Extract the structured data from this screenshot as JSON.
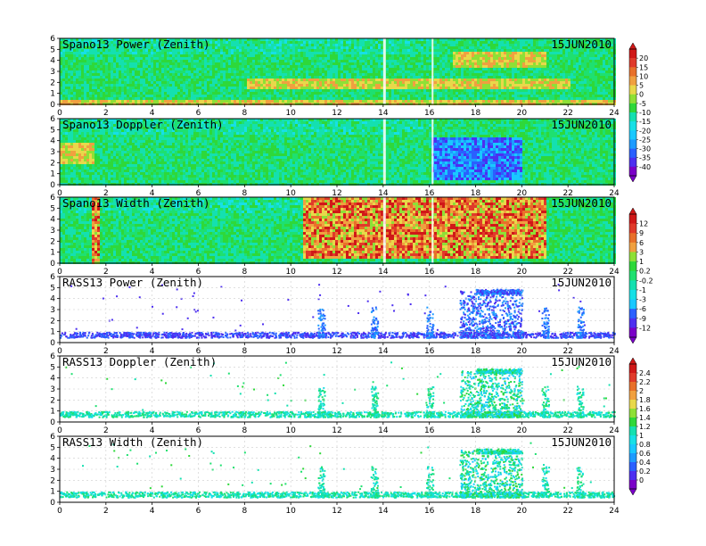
{
  "figure": {
    "date": "15JUN2010",
    "x_ticks": [
      "0",
      "2",
      "4",
      "6",
      "8",
      "10",
      "12",
      "14",
      "16",
      "18",
      "20",
      "22",
      "24"
    ],
    "y_ticks": [
      "0",
      "1",
      "2",
      "3",
      "4",
      "5",
      "6"
    ]
  },
  "colorbars": [
    {
      "panels": [
        0,
        1
      ],
      "ticks": [
        "20",
        "15",
        "10",
        "5",
        "0",
        "-5",
        "-10",
        "-15",
        "-20",
        "-25",
        "-30",
        "-35",
        "-40"
      ]
    },
    {
      "panels": [
        2,
        3
      ],
      "ticks": [
        "12",
        "9",
        "6",
        "3",
        "1",
        "0.2",
        "-0.2",
        "-1",
        "-3",
        "-6",
        "-9",
        "-12"
      ]
    },
    {
      "panels": [
        4,
        5
      ],
      "ticks": [
        "2.4",
        "2.2",
        "2",
        "1.8",
        "1.6",
        "1.4",
        "1.2",
        "1",
        "0.8",
        "0.6",
        "0.4",
        "0.2",
        "0"
      ]
    }
  ],
  "palette": [
    "#7a00c8",
    "#4d2ff0",
    "#2a60ff",
    "#1e9bff",
    "#19c8ff",
    "#16e0e6",
    "#14e0b0",
    "#1ee070",
    "#2ed83a",
    "#8ee036",
    "#e8d84a",
    "#f0a040",
    "#e8702a",
    "#e03a2a",
    "#d01818"
  ],
  "chart_data": [
    {
      "type": "heatmap",
      "title": "Spano13 Power (Zenith)",
      "date": "15JUN2010",
      "xlim": [
        0,
        24
      ],
      "ylim": [
        0,
        6
      ],
      "x_tick_values": [
        0,
        2,
        4,
        6,
        8,
        10,
        12,
        14,
        16,
        18,
        20,
        22,
        24
      ],
      "y_tick_values": [
        0,
        1,
        2,
        3,
        4,
        5,
        6
      ],
      "field": "dense",
      "x_coverage": [
        0,
        24
      ],
      "y_coverage": [
        0,
        6
      ],
      "colorbar_range": [
        -40,
        20
      ],
      "features": [
        {
          "desc": "strong band near ground",
          "x": [
            0,
            24
          ],
          "y": [
            0,
            0.5
          ],
          "level": "high"
        },
        {
          "desc": "enhanced layer",
          "x": [
            8,
            22
          ],
          "y": [
            1.5,
            2.5
          ],
          "level": "high"
        },
        {
          "desc": "enhanced upper layer",
          "x": [
            17,
            21
          ],
          "y": [
            3.5,
            5.0
          ],
          "level": "high"
        }
      ]
    },
    {
      "type": "heatmap",
      "title": "Spano13 Doppler (Zenith)",
      "date": "15JUN2010",
      "xlim": [
        0,
        24
      ],
      "ylim": [
        0,
        6
      ],
      "x_tick_values": [
        0,
        2,
        4,
        6,
        8,
        10,
        12,
        14,
        16,
        18,
        20,
        22,
        24
      ],
      "y_tick_values": [
        0,
        1,
        2,
        3,
        4,
        5,
        6
      ],
      "field": "dense",
      "x_coverage": [
        0,
        24
      ],
      "y_coverage": [
        0,
        6
      ],
      "colorbar_range": [
        -40,
        20
      ],
      "features": [
        {
          "desc": "positive region",
          "x": [
            0,
            1.5
          ],
          "y": [
            2,
            4
          ],
          "level": "high"
        },
        {
          "desc": "negative region",
          "x": [
            16,
            20
          ],
          "y": [
            0.5,
            4.5
          ],
          "level": "low"
        }
      ]
    },
    {
      "type": "heatmap",
      "title": "Spano13 Width (Zenith)",
      "date": "15JUN2010",
      "xlim": [
        0,
        24
      ],
      "ylim": [
        0,
        6
      ],
      "x_tick_values": [
        0,
        2,
        4,
        6,
        8,
        10,
        12,
        14,
        16,
        18,
        20,
        22,
        24
      ],
      "y_tick_values": [
        0,
        1,
        2,
        3,
        4,
        5,
        6
      ],
      "field": "dense",
      "x_coverage": [
        0,
        24
      ],
      "y_coverage": [
        0,
        6
      ],
      "colorbar_range": [
        -12,
        12
      ],
      "features": [
        {
          "desc": "high width convective region",
          "x": [
            10.5,
            21
          ],
          "y": [
            0.5,
            6
          ],
          "level": "high"
        },
        {
          "desc": "high width column",
          "x": [
            1.3,
            1.7
          ],
          "y": [
            0,
            6
          ],
          "level": "high"
        }
      ]
    },
    {
      "type": "heatmap",
      "title": "RASS13 Power (Zenith)",
      "date": "15JUN2010",
      "xlim": [
        0,
        24
      ],
      "ylim": [
        0,
        6
      ],
      "x_tick_values": [
        0,
        2,
        4,
        6,
        8,
        10,
        12,
        14,
        16,
        18,
        20,
        22,
        24
      ],
      "y_tick_values": [
        0,
        1,
        2,
        3,
        4,
        5,
        6
      ],
      "field": "sparse",
      "x_coverage": [
        0,
        24
      ],
      "y_coverage": [
        0.5,
        1.0
      ],
      "colorbar_range": [
        -12,
        12
      ],
      "features": [
        {
          "desc": "dense returns",
          "x": [
            17.3,
            20
          ],
          "y": [
            0.5,
            4.8
          ],
          "level": "mid"
        },
        {
          "desc": "layer",
          "x": [
            18,
            20
          ],
          "y": [
            4.5,
            4.9
          ],
          "level": "mid"
        }
      ]
    },
    {
      "type": "heatmap",
      "title": "RASS13 Doppler (Zenith)",
      "date": "15JUN2010",
      "xlim": [
        0,
        24
      ],
      "ylim": [
        0,
        6
      ],
      "x_tick_values": [
        0,
        2,
        4,
        6,
        8,
        10,
        12,
        14,
        16,
        18,
        20,
        22,
        24
      ],
      "y_tick_values": [
        0,
        1,
        2,
        3,
        4,
        5,
        6
      ],
      "field": "sparse",
      "x_coverage": [
        0,
        24
      ],
      "y_coverage": [
        0.5,
        1.0
      ],
      "colorbar_range": [
        0,
        2.4
      ],
      "features": [
        {
          "desc": "dense returns",
          "x": [
            17.3,
            20
          ],
          "y": [
            0.5,
            4.8
          ],
          "level": "mid"
        },
        {
          "desc": "layer",
          "x": [
            18,
            20
          ],
          "y": [
            4.5,
            4.9
          ],
          "level": "mid"
        }
      ]
    },
    {
      "type": "heatmap",
      "title": "RASS13 Width (Zenith)",
      "date": "15JUN2010",
      "xlim": [
        0,
        24
      ],
      "ylim": [
        0,
        6
      ],
      "x_tick_values": [
        0,
        2,
        4,
        6,
        8,
        10,
        12,
        14,
        16,
        18,
        20,
        22,
        24
      ],
      "y_tick_values": [
        0,
        1,
        2,
        3,
        4,
        5,
        6
      ],
      "field": "sparse",
      "x_coverage": [
        0,
        24
      ],
      "y_coverage": [
        0.5,
        1.0
      ],
      "colorbar_range": [
        0,
        2.4
      ],
      "features": [
        {
          "desc": "dense returns",
          "x": [
            17.3,
            20
          ],
          "y": [
            0.5,
            4.8
          ],
          "level": "mid"
        },
        {
          "desc": "layer",
          "x": [
            18,
            20
          ],
          "y": [
            4.5,
            4.9
          ],
          "level": "mid"
        }
      ]
    }
  ]
}
